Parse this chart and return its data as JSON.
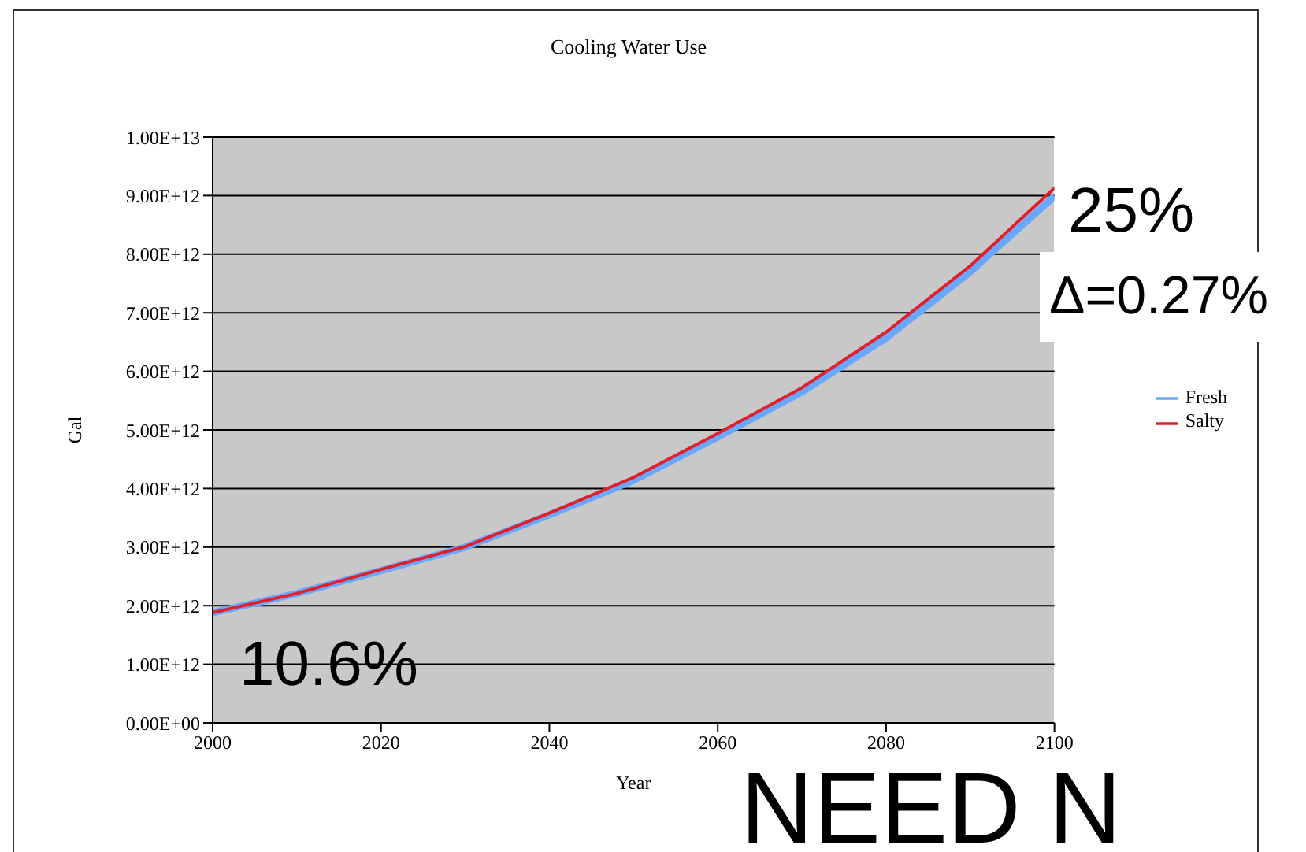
{
  "chart_data": {
    "type": "line",
    "title": "Cooling Water Use",
    "xlabel": "Year",
    "ylabel": "Gal",
    "x": [
      2000,
      2010,
      2020,
      2030,
      2040,
      2050,
      2060,
      2070,
      2080,
      2090,
      2100
    ],
    "series": [
      {
        "name": "Fresh",
        "color": "#6aa8ff",
        "values": [
          1880000000000.0,
          2210000000000.0,
          2600000000000.0,
          3000000000000.0,
          3550000000000.0,
          4140000000000.0,
          4880000000000.0,
          5650000000000.0,
          6570000000000.0,
          7700000000000.0,
          8990000000000.0
        ]
      },
      {
        "name": "Salty",
        "color": "#e0202a",
        "values": [
          1880000000000.0,
          2210000000000.0,
          2620000000000.0,
          3010000000000.0,
          3580000000000.0,
          4190000000000.0,
          4940000000000.0,
          5720000000000.0,
          6670000000000.0,
          7800000000000.0,
          9130000000000.0
        ]
      }
    ],
    "xlim": [
      2000,
      2100
    ],
    "xticks": [
      2000,
      2020,
      2040,
      2060,
      2080,
      2100
    ],
    "ylim": [
      0,
      10000000000000.0
    ],
    "yticks": [
      {
        "value": 0,
        "label": "0.00E+00"
      },
      {
        "value": 1000000000000.0,
        "label": "1.00E+12"
      },
      {
        "value": 2000000000000.0,
        "label": "2.00E+12"
      },
      {
        "value": 3000000000000.0,
        "label": "3.00E+12"
      },
      {
        "value": 4000000000000.0,
        "label": "4.00E+12"
      },
      {
        "value": 5000000000000.0,
        "label": "5.00E+12"
      },
      {
        "value": 6000000000000.0,
        "label": "6.00E+12"
      },
      {
        "value": 7000000000000.0,
        "label": "7.00E+12"
      },
      {
        "value": 8000000000000.0,
        "label": "8.00E+12"
      },
      {
        "value": 9000000000000.0,
        "label": "9.00E+12"
      },
      {
        "value": 10000000000000.0,
        "label": "1.00E+13"
      }
    ],
    "grid": "y",
    "legend": "right",
    "marker": "none",
    "line_style": "solid",
    "annotations": [
      "10.6%",
      "25%",
      "Δ=0.27%",
      "NEED N"
    ]
  }
}
